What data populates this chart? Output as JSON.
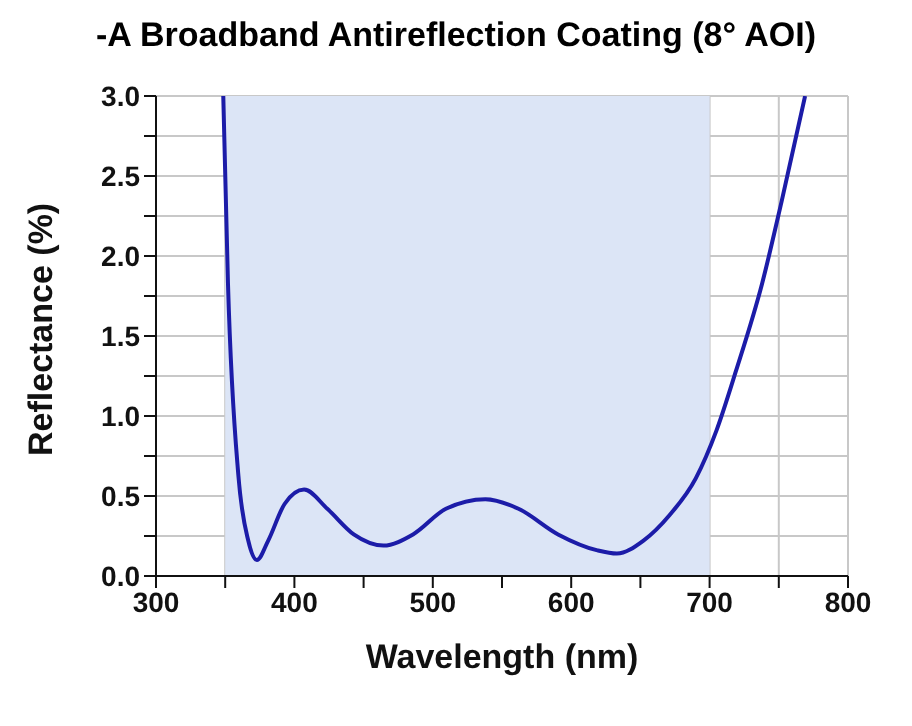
{
  "chart_data": {
    "type": "line",
    "title": "-A Broadband Antireflection Coating (8° AOI)",
    "xlabel": "Wavelength (nm)",
    "ylabel": "Reflectance (%)",
    "x": [
      348.6,
      352,
      359.5,
      366.7,
      372.9,
      381,
      392.9,
      407,
      423.8,
      442.9,
      464.3,
      485.7,
      509.5,
      538,
      561.9,
      590.5,
      619,
      633,
      652,
      671,
      690,
      705,
      719,
      738,
      752,
      769
    ],
    "series": [
      {
        "color": "#1c1ca8",
        "values": [
          3.0,
          1.83,
          0.63,
          0.22,
          0.1,
          0.22,
          0.45,
          0.54,
          0.42,
          0.26,
          0.19,
          0.26,
          0.42,
          0.48,
          0.42,
          0.26,
          0.16,
          0.14,
          0.22,
          0.38,
          0.61,
          0.91,
          1.28,
          1.83,
          2.34,
          3.0
        ]
      }
    ],
    "xlim": [
      300,
      800
    ],
    "xticks": [
      300,
      {
        "value": 350,
        "label": null
      },
      400,
      {
        "value": 450,
        "label": null
      },
      500,
      {
        "value": 550,
        "label": null
      },
      600,
      {
        "value": 650,
        "label": null
      },
      700,
      {
        "value": 750,
        "label": null
      },
      800
    ],
    "ylim": [
      0,
      3
    ],
    "yticks": [
      {
        "value": 0,
        "label": "0.0"
      },
      {
        "value": 0.25,
        "label": null
      },
      0.5,
      {
        "value": 0.75,
        "label": null
      },
      {
        "value": 1,
        "label": "1.0"
      },
      {
        "value": 1.25,
        "label": null
      },
      1.5,
      {
        "value": 1.75,
        "label": null
      },
      {
        "value": 2,
        "label": "2.0"
      },
      {
        "value": 2.25,
        "label": null
      },
      2.5,
      {
        "value": 2.75,
        "label": null
      },
      {
        "value": 3,
        "label": "3.0"
      }
    ],
    "bands": [
      {
        "axis": "x",
        "from": 350,
        "to": 700,
        "color": "#dce5f6"
      }
    ],
    "grid": true,
    "marker": "none",
    "line_style": "solid",
    "legend": false
  }
}
